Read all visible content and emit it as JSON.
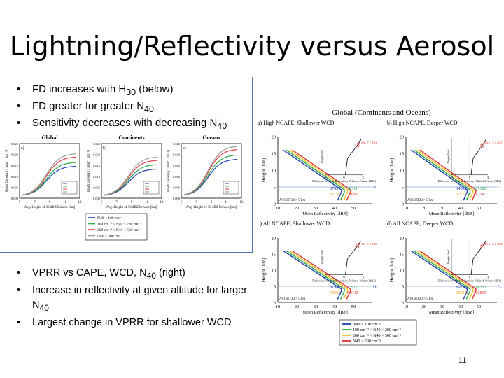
{
  "slide": {
    "title": "Lightning/Reflectivity versus Aerosol",
    "top_bullets": [
      {
        "text": "FD increases with H",
        "sub": "30",
        "tail": " (below)"
      },
      {
        "text": "FD greater for greater N",
        "sub": "40",
        "tail": ""
      },
      {
        "text": "Sensitivity decreases with decreasing N",
        "sub": "40",
        "tail": ""
      }
    ],
    "bottom_bullets": [
      {
        "text": "VPRR vs CAPE, WCD, N",
        "sub": "40",
        "tail": " (right)"
      },
      {
        "text": "Increase in reflectivity at given altitude for larger N",
        "sub": "40",
        "tail": ""
      },
      {
        "text": "Largest change in VPRR for shallower WCD",
        "sub": "",
        "tail": ""
      }
    ],
    "page_number": "11"
  },
  "left_figure": {
    "panel_titles": [
      "Global",
      "Continents",
      "Oceans"
    ],
    "panel_letters": [
      "a)",
      "b)",
      "c)"
    ],
    "ylabel": "Flash Density [1 min⁻¹ km⁻²]",
    "xlabel": "Avg. Height of 30 dBZ Echoes [km]",
    "xticks": [
      "5",
      "7",
      "9",
      "11",
      "13"
    ],
    "yticks": [
      "0.000",
      "0.005",
      "0.010",
      "0.015",
      "0.020",
      "0.025"
    ],
    "legend": [
      "N40 < 100 cm⁻³",
      "100 cm⁻³ < N40 < 200 cm⁻³",
      "200 cm⁻³ < N40 < 500 cm⁻³",
      "N40 > 500 cm⁻³"
    ],
    "series_colors": [
      "#1f3fb0",
      "#2aa84a",
      "#e04040",
      "#9a9a9a"
    ]
  },
  "right_figure": {
    "title": "Global (Continents and Oceans)",
    "panels": [
      {
        "label": "a) High NCAPE, Shallower WCD",
        "max": "MAX: 7.7 dBZ",
        "counts": [
          "37057",
          "16911",
          "33159",
          "34661"
        ]
      },
      {
        "label": "b) High NCAPE, Deeper WCD",
        "max": "MAX: 5.0 dBZ",
        "counts": [
          "346921",
          "135198",
          "127791",
          "84714"
        ]
      },
      {
        "label": "c) All NCAPE, Shallower WCD",
        "max": "MAX: 7.6 dBZ",
        "counts": [
          "81986",
          "23917",
          "43007",
          "56942"
        ]
      },
      {
        "label": "d) All NCAPE, Deeper WCD",
        "max": "MAX: 5.2 dBZ",
        "counts": [
          "697334",
          "186553",
          "254211",
          "126819"
        ]
      }
    ],
    "ylabel": "Height [km]",
    "xlabel": "Mean Reflectivity [dBZ]",
    "xticks": [
      "10",
      "20",
      "30",
      "40",
      "50"
    ],
    "yticks": [
      "0",
      "5",
      "10",
      "15",
      "20"
    ],
    "inset_xlabel": "Difference in Mean Reflectivity Polluted–Pristine [dBZ]",
    "inset_ylabel": "Height [km]",
    "inset_xticks": [
      "-3",
      "0",
      "3"
    ],
    "avg_label": "AVGHT30 > 5 km",
    "fl_label": "FL",
    "legend": [
      "N40 < 100 cm⁻³",
      "100 cm⁻³ < N40 < 200 cm⁻³",
      "200 cm⁻³ < N40 < 500 cm⁻³",
      "N40 > 500 cm⁻³"
    ],
    "series_colors": [
      "#1f3fb0",
      "#2aa84a",
      "#f0c020",
      "#e03030"
    ],
    "count_colors": [
      "#1f3fb0",
      "#2aa84a",
      "#f0a020",
      "#e03030"
    ]
  }
}
